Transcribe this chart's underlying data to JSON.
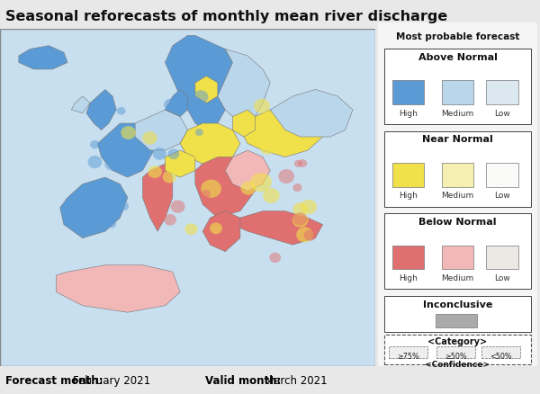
{
  "title": "Seasonal reforecasts of monthly mean river discharge",
  "footer_bold1": "Forecast month:",
  "footer_text1": "February 2021",
  "footer_bold2": "Valid month:",
  "footer_text2": "March 2021",
  "legend_title": "Most probable forecast",
  "section_above": "Above Normal",
  "section_near": "Near Normal",
  "section_below": "Below Normal",
  "section_inconclusive": "Inconclusive",
  "labels_hml": [
    "High",
    "Medium",
    "Low"
  ],
  "above_colors": [
    "#5b9bd5",
    "#bad6eb",
    "#dce8f0"
  ],
  "near_colors": [
    "#f0e04a",
    "#f5efb0",
    "#fafaf8"
  ],
  "below_colors": [
    "#e07070",
    "#f2b8b8",
    "#ece8e4"
  ],
  "inconclusive_color": "#aaaaaa",
  "legend_bg": "#f2f2f2",
  "legend_border": "#bbbbbb",
  "map_ocean": "#c8dff0",
  "title_fontsize": 11.5,
  "confidence_labels": [
    "≥75%",
    "≥50%",
    "<50%"
  ],
  "category_text": "<Category>",
  "confidence_text": "<Confidence>",
  "fig_bg": "#e8e8e8",
  "map_border": "#888888"
}
